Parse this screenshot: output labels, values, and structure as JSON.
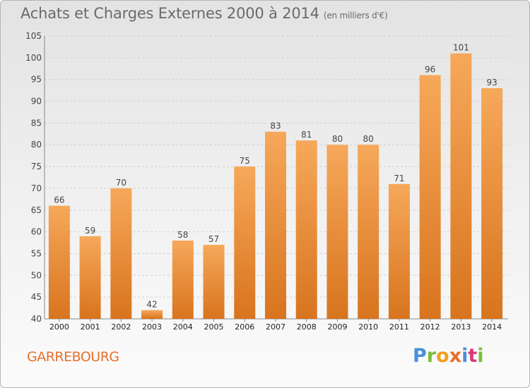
{
  "title": "Achats et Charges Externes 2000 à 2014",
  "subtitle": "(en milliers d'€)",
  "place": "GARREBOURG",
  "brand": {
    "letters": [
      "P",
      "r",
      "o",
      "x",
      "i",
      "t",
      "i"
    ],
    "colors": [
      "#4a90d9",
      "#7bbf3a",
      "#f0a020",
      "#e8702a",
      "#4a90d9",
      "#d93a7a",
      "#7bbf3a"
    ]
  },
  "colors": {
    "bar_light": "#f6a85a",
    "bar_dark": "#d8741e",
    "grid": "#cfcfcf",
    "text": "#444444"
  },
  "chart_data": {
    "type": "bar",
    "title": "Achats et Charges Externes 2000 à 2014",
    "subtitle": "(en milliers d'€)",
    "xlabel": "",
    "ylabel": "",
    "categories": [
      "2000",
      "2001",
      "2002",
      "2003",
      "2004",
      "2005",
      "2006",
      "2007",
      "2008",
      "2009",
      "2010",
      "2011",
      "2012",
      "2013",
      "2014"
    ],
    "values": [
      66,
      59,
      70,
      42,
      58,
      57,
      75,
      83,
      81,
      80,
      80,
      71,
      96,
      101,
      93
    ],
    "ylim": [
      40,
      105
    ],
    "yticks": [
      40,
      45,
      50,
      55,
      60,
      65,
      70,
      75,
      80,
      85,
      90,
      95,
      100,
      105
    ],
    "grid": true,
    "data_labels": true
  }
}
